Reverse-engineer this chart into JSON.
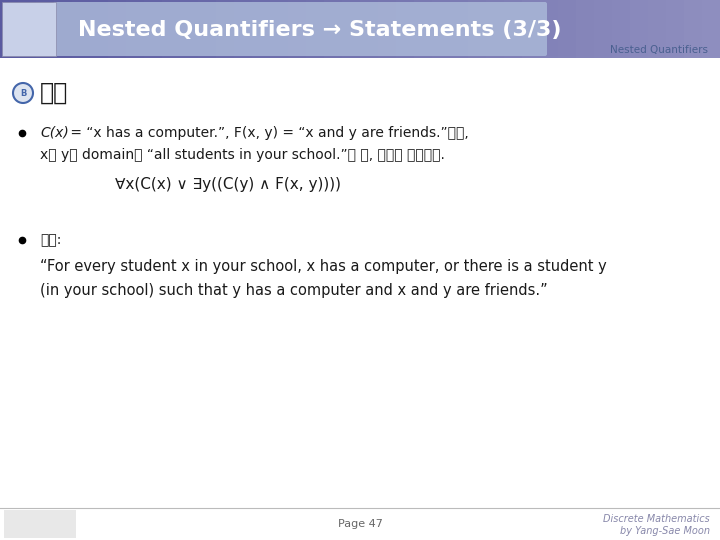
{
  "title": "Nested Quantifiers → Statements (3/3)",
  "subtitle": "Nested Quantifiers",
  "section_label": "예제",
  "bullet1_line1a": "C(x)",
  "bullet1_line1b": " = “x has a computer.”, ",
  "bullet1_line1c": "F(x, y)",
  "bullet1_line1d": " = “x and y are friends.”이고,",
  "bullet1_line2": "x와 y의 domain이 “all students in your school.”일 때, 다음을 번역하라.",
  "formula": "∀x(C(x) ∨ ∃y((C(y) ∧ F(x, y))))",
  "bullet2_label": "풀이:",
  "bullet2_line1": "“For every student x in your school, x has a computer, or there is a student y",
  "bullet2_line2": "(in your school) such that y has a computer and x and y are friends.”",
  "page": "Page 47",
  "footer_right1": "Discrete Mathematics",
  "footer_right2": "by Yang-Sae Moon",
  "header_purple": "#6b6bb0",
  "header_purple_right": "#8080b8",
  "header_banner_color": "#a0acd8",
  "header_text_color": "#ffffff",
  "bg_color": "#ffffff",
  "body_text_color": "#1a1a1a",
  "footer_text_color": "#777777",
  "subtitle_color": "#4a6090"
}
